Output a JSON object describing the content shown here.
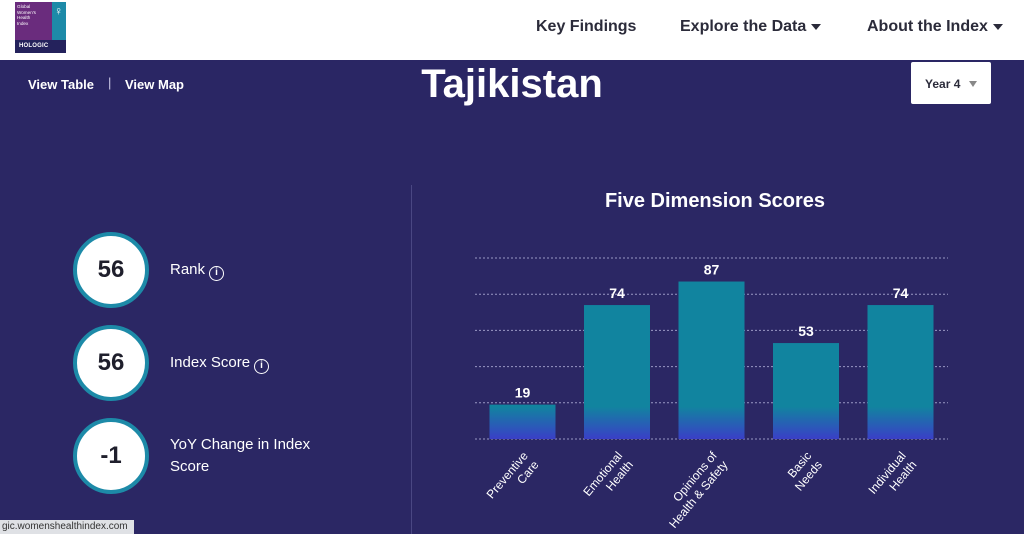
{
  "logo": {
    "lines": [
      "Global",
      "Women's",
      "Health",
      "Index"
    ],
    "brand": "HOLOGIC"
  },
  "nav": {
    "items": [
      "Key Findings",
      "Explore the Data",
      "About the Index"
    ]
  },
  "subnav": {
    "view_table": "View Table",
    "separator": "|",
    "view_map": "View Map"
  },
  "country": "Tajikistan",
  "year_select": {
    "value": "Year 4"
  },
  "stats": [
    {
      "value": "56",
      "label": "Rank",
      "info": "i"
    },
    {
      "value": "56",
      "label": "Index Score",
      "info": "i"
    },
    {
      "value": "-1",
      "label_line1": "YoY Change in Index",
      "label_line2": "Score"
    }
  ],
  "status_url": "gic.womenshealthindex.com",
  "colors": {
    "background": "#2b2764",
    "bar_top": "#11849f",
    "bar_bottom": "#3a3fc7",
    "circle_border": "#1d8aa8"
  },
  "chart_data": {
    "type": "bar",
    "title": "Five Dimension Scores",
    "categories": [
      [
        "Preventive",
        "Care"
      ],
      [
        "Emotional",
        "Health"
      ],
      [
        "Opinions of",
        "Health & Safety"
      ],
      [
        "Basic",
        "Needs"
      ],
      [
        "Individual",
        "Health"
      ]
    ],
    "values": [
      19,
      74,
      87,
      53,
      74
    ],
    "ylim": [
      0,
      100
    ],
    "grid": true,
    "data_labels": true
  }
}
